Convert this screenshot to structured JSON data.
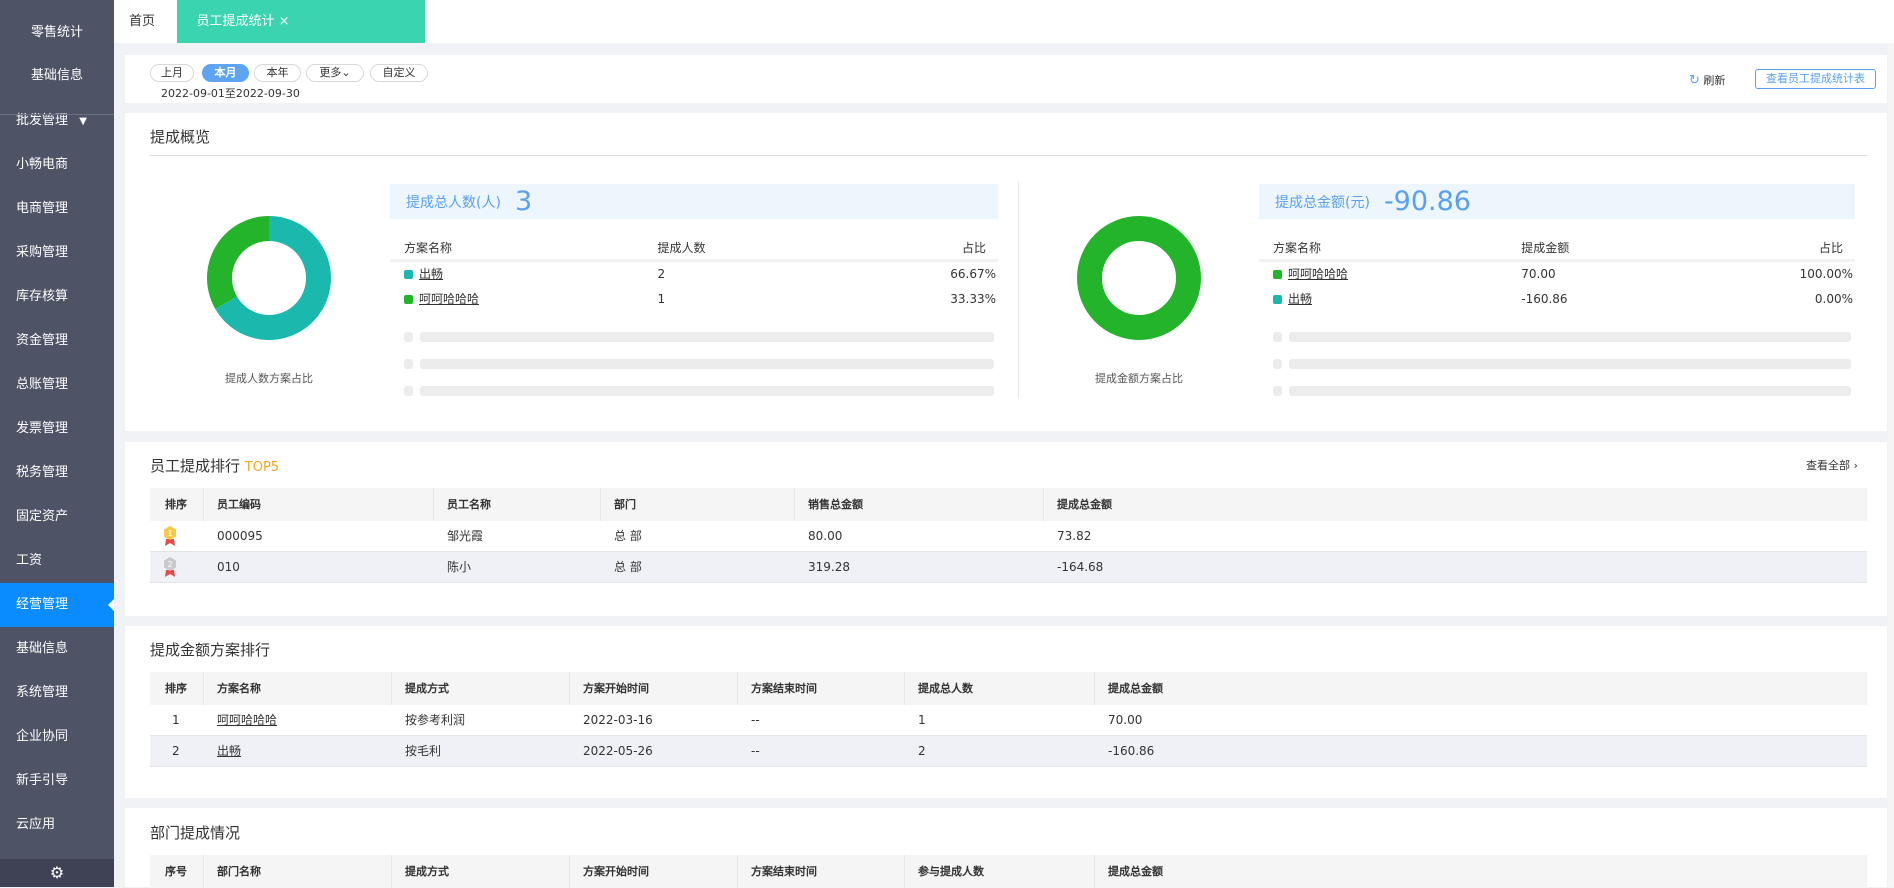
{
  "sidebar": {
    "items": [
      "零售统计",
      "基础信息",
      "批发管理",
      "小畅电商",
      "电商管理",
      "采购管理",
      "库存核算",
      "资金管理",
      "总账管理",
      "发票管理",
      "税务管理",
      "固定资产",
      "工资",
      "经营管理",
      "基础信息",
      "系统管理",
      "企业协同",
      "新手引导",
      "云应用"
    ],
    "active": "经营管理",
    "settings_icon": "gear-icon"
  },
  "tabs": [
    {
      "label": "首页"
    },
    {
      "label": "员工提成统计",
      "close": "×"
    }
  ],
  "filter": {
    "buttons": [
      "上月",
      "本月",
      "本年",
      "更多⌄",
      "自定义"
    ],
    "selected": "本月",
    "date_range": "2022-09-01至2022-09-30",
    "refresh": "刷新",
    "view_table": "查看员工提成统计表"
  },
  "overview": {
    "title": "提成概览",
    "people": {
      "label": "提成总人数(人)",
      "value": "3",
      "chart_label": "提成人数方案占比",
      "headers": [
        "方案名称",
        "提成人数",
        "占比"
      ],
      "rows": [
        {
          "name": "出畅",
          "value": "2",
          "pct": "66.67%",
          "color": "#1bb8ae"
        },
        {
          "name": "呵呵哈哈哈",
          "value": "1",
          "pct": "33.33%",
          "color": "#24b42c"
        }
      ]
    },
    "amount": {
      "label": "提成总金额(元)",
      "value": "-90.86",
      "chart_label": "提成金额方案占比",
      "headers": [
        "方案名称",
        "提成金额",
        "占比"
      ],
      "rows": [
        {
          "name": "呵呵哈哈哈",
          "value": "70.00",
          "pct": "100.00%",
          "color": "#24b42c"
        },
        {
          "name": "出畅",
          "value": "-160.86",
          "pct": "0.00%",
          "color": "#1bb8ae"
        }
      ]
    }
  },
  "chart_data": [
    {
      "type": "pie",
      "title": "提成人数方案占比",
      "categories": [
        "出畅",
        "呵呵哈哈哈"
      ],
      "values": [
        2,
        1
      ],
      "colors": [
        "#1bb8ae",
        "#24b42c"
      ],
      "donut": true
    },
    {
      "type": "pie",
      "title": "提成金额方案占比",
      "categories": [
        "呵呵哈哈哈",
        "出畅"
      ],
      "values": [
        100,
        0
      ],
      "colors": [
        "#24b42c",
        "#1bb8ae"
      ],
      "donut": true
    }
  ],
  "ranking": {
    "title": "员工提成排行",
    "badge": "TOP5",
    "view_all": "查看全部",
    "headers": [
      "排序",
      "员工编码",
      "员工名称",
      "部门",
      "销售总金额",
      "提成总金额"
    ],
    "rows": [
      [
        "1",
        "000095",
        "邹光霞",
        "总 部",
        "80.00",
        "73.82"
      ],
      [
        "2",
        "010",
        "陈小",
        "总 部",
        "319.28",
        "-164.68"
      ]
    ]
  },
  "plans": {
    "title": "提成金额方案排行",
    "headers": [
      "排序",
      "方案名称",
      "提成方式",
      "方案开始时间",
      "方案结束时间",
      "提成总人数",
      "提成总金额"
    ],
    "rows": [
      [
        "1",
        "呵呵哈哈哈",
        "按参考利润",
        "2022-03-16",
        "--",
        "1",
        "70.00"
      ],
      [
        "2",
        "出畅",
        "按毛利",
        "2022-05-26",
        "--",
        "2",
        "-160.86"
      ]
    ]
  },
  "dept": {
    "title": "部门提成情况",
    "headers": [
      "序号",
      "部门名称",
      "提成方式",
      "方案开始时间",
      "方案结束时间",
      "参与提成人数",
      "提成总金额"
    ]
  }
}
